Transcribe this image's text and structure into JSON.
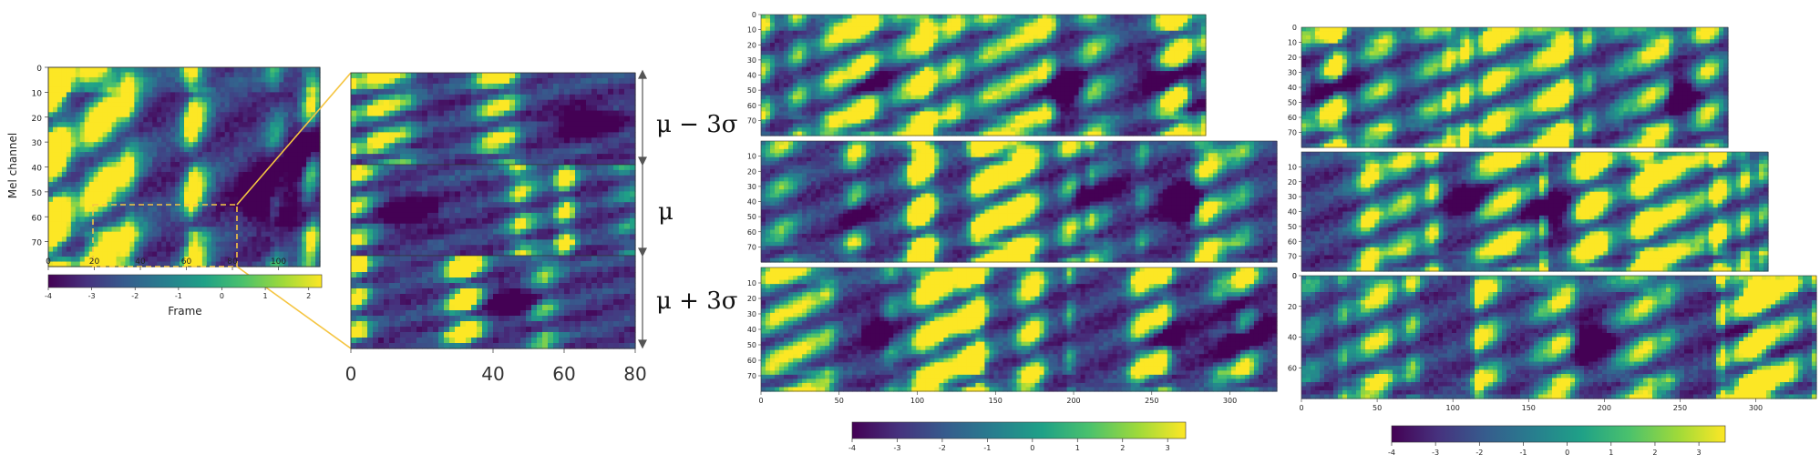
{
  "colors": {
    "viridis": [
      "#440154",
      "#46327e",
      "#365c8d",
      "#277f8e",
      "#1fa187",
      "#4ac16d",
      "#a0da39",
      "#fde725"
    ],
    "highlight": "#f5c542",
    "arrow": "#555555"
  },
  "panel_a": {
    "ylabel": "Mel channel",
    "xlabel": "Frame",
    "yticks": [
      "0",
      "10",
      "20",
      "30",
      "40",
      "50",
      "60",
      "70"
    ],
    "xticks": [
      "0",
      "20",
      "40",
      "60",
      "80",
      "100"
    ],
    "colorbar_ticks": [
      "-4",
      "-3",
      "-2",
      "-1",
      "0",
      "1",
      "2"
    ]
  },
  "zoom": {
    "xticks": [
      "0",
      "40",
      "60",
      "80"
    ],
    "row_labels": [
      "μ − 3σ",
      "μ",
      "μ + 3σ"
    ]
  },
  "panel_b": {
    "yticks": [
      "0",
      "10",
      "20",
      "30",
      "40",
      "50",
      "60",
      "70"
    ],
    "xticks": [
      "0",
      "50",
      "100",
      "150",
      "200",
      "250",
      "300"
    ],
    "colorbar_ticks": [
      "-4",
      "-3",
      "-2",
      "-1",
      "0",
      "1",
      "2",
      "3"
    ]
  },
  "panel_c": {
    "yticks_top": [
      "10",
      "20",
      "30",
      "40",
      "50",
      "60",
      "70"
    ],
    "yticks_mid": [
      "10",
      "20",
      "30",
      "40",
      "50",
      "60",
      "70"
    ],
    "yticks_bottom": [
      "0",
      "20",
      "40",
      "60"
    ],
    "top_zero": "0",
    "xticks": [
      "0",
      "50",
      "100",
      "150",
      "200",
      "250",
      "300"
    ],
    "colorbar_ticks": [
      "-4",
      "-3",
      "-2",
      "-1",
      "0",
      "1",
      "2",
      "3"
    ]
  },
  "chart_data": [
    {
      "type": "heatmap",
      "xlabel": "Frame",
      "ylabel": "Mel channel",
      "xlim": [
        0,
        118
      ],
      "ylim": [
        80,
        0
      ],
      "colorbar_range": [
        -4,
        2.3
      ],
      "colormap": "viridis"
    },
    {
      "type": "heatmap",
      "series": [
        {
          "name": "μ − 3σ"
        },
        {
          "name": "μ"
        },
        {
          "name": "μ + 3σ"
        }
      ],
      "xlim": [
        0,
        80
      ],
      "colormap": "viridis"
    },
    {
      "type": "heatmap",
      "xlim": [
        0,
        330
      ],
      "ylim": [
        80,
        0
      ],
      "colorbar_range": [
        -4,
        3.4
      ],
      "colormap": "viridis"
    },
    {
      "type": "heatmap",
      "xlim": [
        0,
        340
      ],
      "ylim": [
        80,
        0
      ],
      "colorbar_range": [
        -4,
        3.6
      ],
      "colormap": "viridis"
    }
  ]
}
